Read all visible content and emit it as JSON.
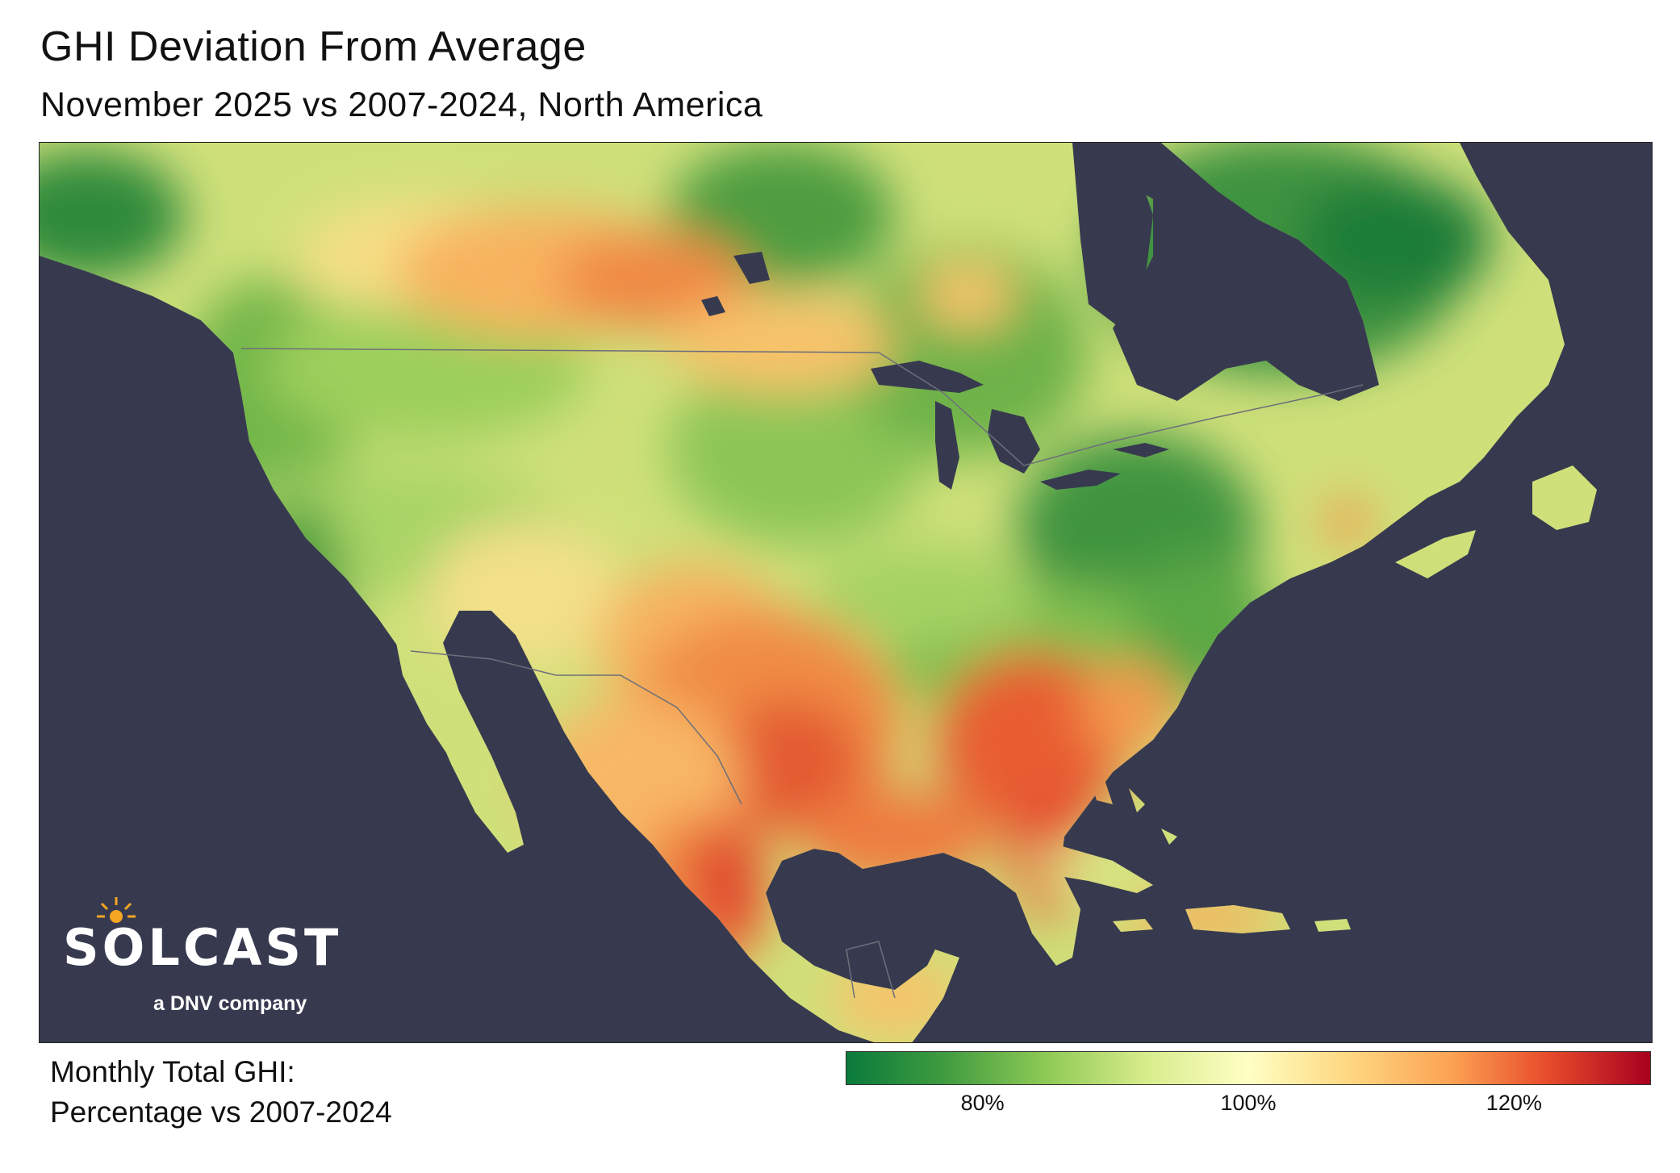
{
  "title": "GHI Deviation From Average",
  "subtitle": "November 2025 vs 2007-2024, North America",
  "logo": {
    "word": "SOLCAST",
    "tagline": "a DNV company"
  },
  "legend": {
    "label_line1": "Monthly Total GHI:",
    "label_line2": "Percentage vs 2007-2024",
    "ticks": [
      {
        "label": "80%",
        "fraction": 0.17
      },
      {
        "label": "100%",
        "fraction": 0.5
      },
      {
        "label": "120%",
        "fraction": 0.83
      }
    ],
    "colors": [
      "#0a7a3c",
      "#8fca55",
      "#ffffc4",
      "#fca454",
      "#a8001f"
    ]
  },
  "map": {
    "ocean_color": "#373a4f",
    "land_base_color": "#cfe07a"
  }
}
